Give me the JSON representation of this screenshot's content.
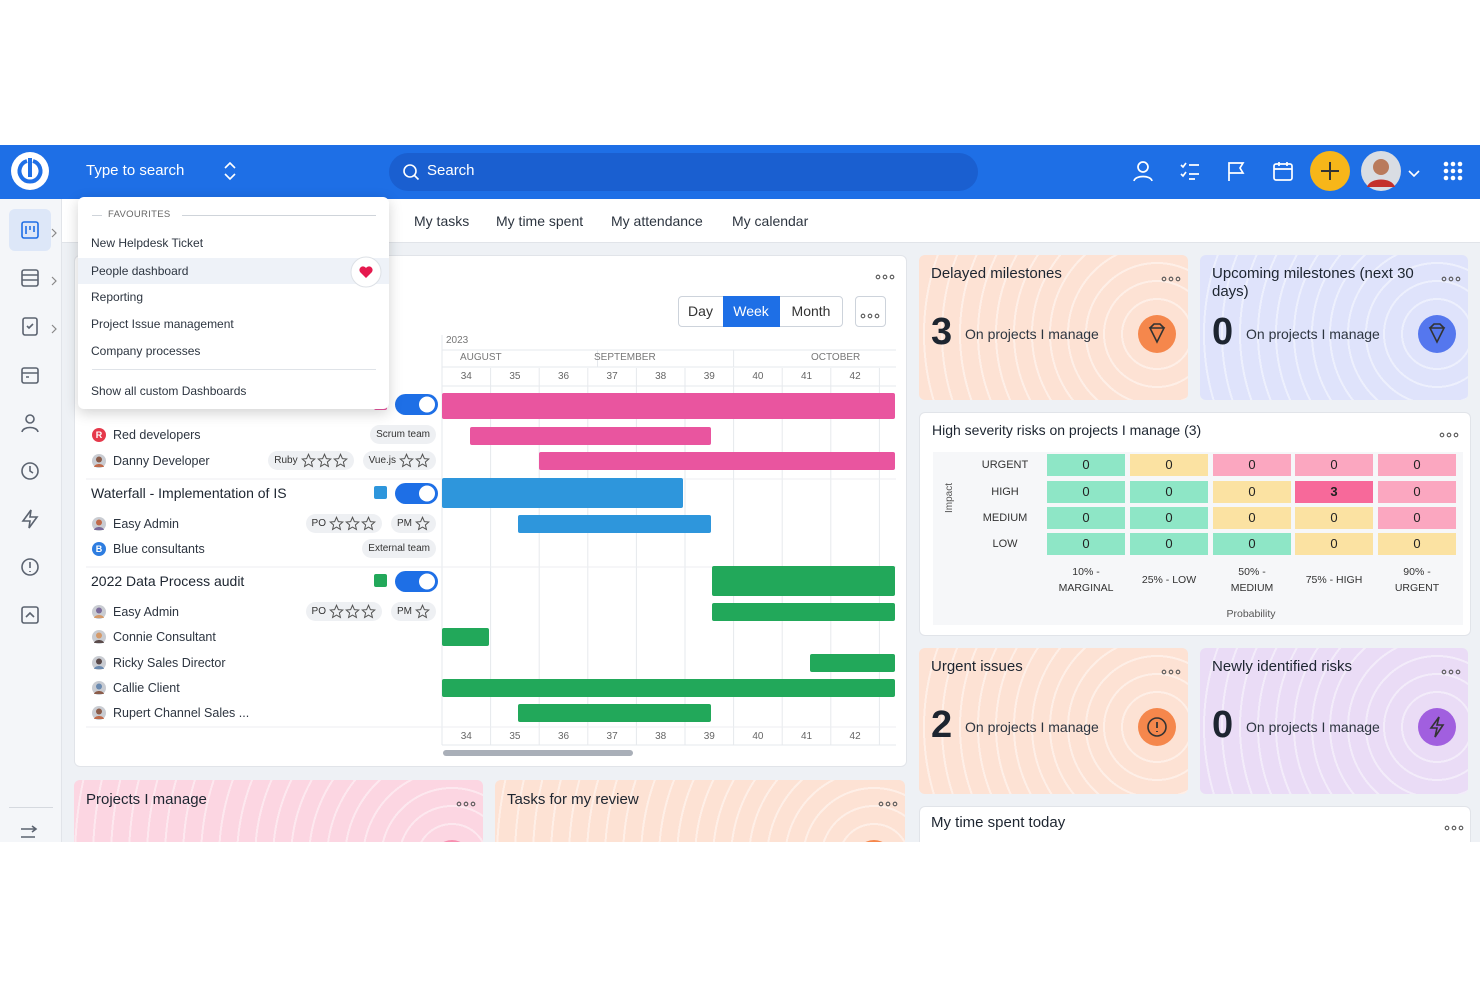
{
  "header": {
    "search_placeholder": "Type to search",
    "search": "Search"
  },
  "favourites": {
    "title": "FAVOURITES",
    "items": [
      "New Helpdesk Ticket",
      "People dashboard",
      "Reporting",
      "Project Issue management",
      "Company processes"
    ],
    "show_all": "Show all custom Dashboards"
  },
  "tabs": [
    "My tasks",
    "My time spent",
    "My attendance",
    "My calendar"
  ],
  "gantt": {
    "views": [
      "Day",
      "Week",
      "Month"
    ],
    "year": "2023",
    "months": [
      "AUGUST",
      "SEPTEMBER",
      "OCTOBER"
    ],
    "weeks": [
      34,
      35,
      36,
      37,
      38,
      39,
      40,
      41,
      42
    ],
    "rows": [
      {
        "type": "member",
        "name": "Red developers",
        "badge": "R",
        "tags": [
          {
            "label": "Scrum team"
          }
        ]
      },
      {
        "type": "member",
        "name": "Danny Developer",
        "tags": [
          {
            "label": "Ruby",
            "stars": 3
          },
          {
            "label": "Vue.js",
            "stars": 2
          }
        ]
      },
      {
        "type": "project",
        "name": "Waterfall - Implementation of IS"
      },
      {
        "type": "member",
        "name": "Easy Admin",
        "tags": [
          {
            "label": "PO",
            "stars": 3
          },
          {
            "label": "PM",
            "stars": 1
          }
        ]
      },
      {
        "type": "member",
        "name": "Blue consultants",
        "badge": "B",
        "tags": [
          {
            "label": "External team"
          }
        ]
      },
      {
        "type": "project",
        "name": "2022 Data Process audit"
      },
      {
        "type": "member",
        "name": "Easy Admin",
        "tags": [
          {
            "label": "PO",
            "stars": 3
          },
          {
            "label": "PM",
            "stars": 1
          }
        ]
      },
      {
        "type": "member",
        "name": "Connie Consultant"
      },
      {
        "type": "member",
        "name": "Ricky Sales Director"
      },
      {
        "type": "member",
        "name": "Callie Client"
      },
      {
        "type": "member",
        "name": "Rupert Channel Sales ..."
      }
    ]
  },
  "cards": [
    {
      "title": "Delayed milestones",
      "count": 3,
      "subtitle": "On projects I manage"
    },
    {
      "title": "Upcoming milestones (next 30 days)",
      "count": 0,
      "subtitle": "On projects I manage"
    },
    {
      "title": "Urgent issues",
      "count": 2,
      "subtitle": "On projects I manage"
    },
    {
      "title": "Newly identified risks",
      "count": 0,
      "subtitle": "On projects I manage"
    }
  ],
  "risks": {
    "title": "High severity risks on projects I manage (3)",
    "impact_label": "Impact",
    "probability_label": "Probability",
    "impact": [
      "URGENT",
      "HIGH",
      "MEDIUM",
      "LOW"
    ],
    "probability": [
      "10% - MARGINAL",
      "25% - LOW",
      "50% - MEDIUM",
      "75% - HIGH",
      "90% - URGENT"
    ],
    "cells": [
      [
        0,
        0,
        0,
        0,
        0
      ],
      [
        0,
        0,
        0,
        3,
        0
      ],
      [
        0,
        0,
        0,
        0,
        0
      ],
      [
        0,
        0,
        0,
        0,
        0
      ]
    ]
  },
  "bottom_cards": [
    "Projects I manage",
    "Tasks for my review",
    "My time spent today"
  ]
}
